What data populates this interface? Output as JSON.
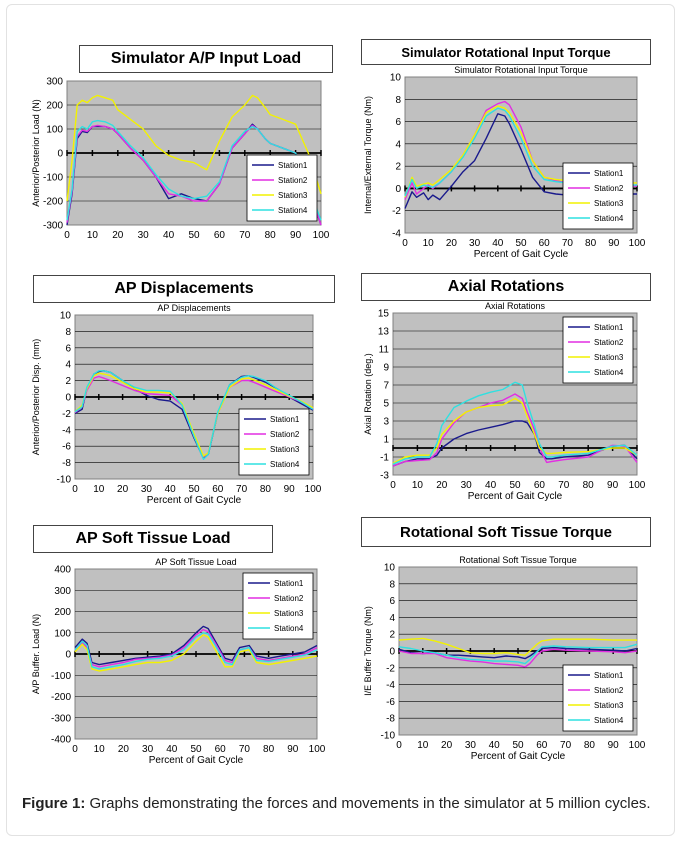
{
  "caption": {
    "label": "Figure 1:",
    "text": "Graphs demonstrating the forces and movements in the simulator at 5 million cycles."
  },
  "colors": {
    "plot_bg": "#c0c0c0",
    "Station1": "#1a1a8c",
    "Station2": "#e22ee2",
    "Station3": "#f2f200",
    "Station4": "#2fe0e0"
  },
  "chart_data": [
    {
      "id": "ap-input-load",
      "type": "line",
      "title": "Simulator A/P Input Load",
      "subtitle": "",
      "xlabel": "",
      "ylabel": "Anterior/Posterior Load (N)",
      "xlim": [
        0,
        100
      ],
      "ylim": [
        -300,
        300
      ],
      "xticks": [
        0,
        10,
        20,
        30,
        40,
        50,
        60,
        70,
        80,
        90,
        100
      ],
      "yticks": [
        -300,
        -200,
        -100,
        0,
        100,
        200,
        300
      ],
      "grid": true,
      "legend": "bottom-right",
      "x": [
        0,
        2,
        4,
        6,
        8,
        10,
        12,
        15,
        18,
        20,
        25,
        30,
        35,
        40,
        45,
        50,
        55,
        60,
        65,
        70,
        73,
        75,
        78,
        80,
        85,
        90,
        95,
        100
      ],
      "series": [
        {
          "name": "Station1",
          "values": [
            -300,
            -170,
            60,
            90,
            85,
            110,
            110,
            110,
            100,
            80,
            20,
            -30,
            -100,
            -190,
            -170,
            -190,
            -200,
            -130,
            20,
            80,
            120,
            100,
            60,
            40,
            20,
            0,
            -150,
            -300
          ]
        },
        {
          "name": "Station2",
          "values": [
            -290,
            -160,
            70,
            95,
            90,
            110,
            115,
            110,
            100,
            80,
            20,
            -30,
            -100,
            -170,
            -180,
            -200,
            -200,
            -130,
            20,
            80,
            115,
            100,
            60,
            40,
            20,
            0,
            -140,
            -300
          ]
        },
        {
          "name": "Station3",
          "values": [
            -200,
            -30,
            200,
            220,
            210,
            230,
            240,
            230,
            220,
            180,
            140,
            100,
            30,
            -10,
            -30,
            -40,
            -70,
            50,
            150,
            200,
            240,
            230,
            190,
            160,
            140,
            120,
            0,
            -170
          ]
        },
        {
          "name": "Station4",
          "values": [
            -280,
            -150,
            90,
            110,
            100,
            130,
            135,
            130,
            115,
            90,
            30,
            -20,
            -90,
            -150,
            -180,
            -190,
            -180,
            -120,
            30,
            90,
            110,
            100,
            60,
            40,
            20,
            0,
            -140,
            -280
          ]
        }
      ]
    },
    {
      "id": "rotational-input-torque",
      "type": "line",
      "title": "Simulator Rotational Input Torque",
      "subtitle": "Simulator Rotational Input Torque",
      "xlabel": "Percent of Gait Cycle",
      "ylabel": "Internal/External Torque (Nm)",
      "xlim": [
        0,
        100
      ],
      "ylim": [
        -4,
        10
      ],
      "xticks": [
        0,
        10,
        20,
        30,
        40,
        50,
        60,
        70,
        80,
        90,
        100
      ],
      "yticks": [
        -4,
        -2,
        0,
        2,
        4,
        6,
        8,
        10
      ],
      "grid": true,
      "legend": "bottom-right",
      "x": [
        0,
        3,
        5,
        8,
        10,
        12,
        15,
        20,
        25,
        30,
        35,
        40,
        43,
        45,
        50,
        55,
        60,
        65,
        70,
        80,
        90,
        100
      ],
      "series": [
        {
          "name": "Station1",
          "values": [
            -1.8,
            -0.3,
            -0.8,
            -0.4,
            -1.0,
            -0.6,
            -1.0,
            0.2,
            1.5,
            2.5,
            4.5,
            6.7,
            6.5,
            5.8,
            3.5,
            1.0,
            -0.3,
            -0.5,
            -0.6,
            -0.6,
            -0.5,
            -0.5
          ]
        },
        {
          "name": "Station2",
          "values": [
            -1.0,
            0.5,
            -0.5,
            0.0,
            0.3,
            0.0,
            0.5,
            1.5,
            3.0,
            4.8,
            7.0,
            7.6,
            7.8,
            7.5,
            5.5,
            2.5,
            1.0,
            0.7,
            0.5,
            0.4,
            0.3,
            0.2
          ]
        },
        {
          "name": "Station3",
          "values": [
            -0.8,
            1.0,
            0.2,
            0.4,
            0.5,
            0.3,
            0.8,
            1.7,
            3.0,
            4.8,
            6.8,
            7.4,
            7.2,
            6.8,
            5.0,
            2.5,
            1.0,
            0.8,
            0.7,
            0.6,
            0.5,
            0.5
          ]
        },
        {
          "name": "Station4",
          "values": [
            -0.7,
            0.8,
            0.0,
            0.3,
            0.2,
            0.1,
            0.5,
            1.5,
            2.8,
            4.5,
            6.5,
            7.2,
            7.0,
            6.5,
            4.5,
            2.0,
            0.8,
            0.6,
            0.5,
            0.4,
            0.3,
            0.3
          ]
        }
      ]
    },
    {
      "id": "ap-displacements",
      "type": "line",
      "title": "AP Displacements",
      "subtitle": "AP Displacements",
      "xlabel": "Percent of Gait Cycle",
      "ylabel": "Anterior/Posterior Disp. (mm)",
      "xlim": [
        0,
        100
      ],
      "ylim": [
        -10,
        10
      ],
      "xticks": [
        0,
        10,
        20,
        30,
        40,
        50,
        60,
        70,
        80,
        90,
        100
      ],
      "yticks": [
        -10,
        -8,
        -6,
        -4,
        -2,
        0,
        2,
        4,
        6,
        8,
        10
      ],
      "grid": true,
      "legend": "bottom-right",
      "x": [
        0,
        3,
        5,
        8,
        10,
        12,
        15,
        20,
        25,
        30,
        35,
        40,
        45,
        50,
        54,
        56,
        60,
        65,
        70,
        73,
        75,
        80,
        85,
        90,
        95,
        100
      ],
      "series": [
        {
          "name": "Station1",
          "values": [
            -2.0,
            -1.5,
            1.0,
            2.8,
            3.1,
            3.2,
            3.0,
            2.0,
            1.0,
            0.2,
            -0.3,
            -0.5,
            -1.5,
            -5.0,
            -7.5,
            -7.0,
            -2.0,
            1.5,
            2.5,
            2.6,
            2.4,
            1.8,
            1.0,
            0.0,
            -0.8,
            -1.6
          ]
        },
        {
          "name": "Station2",
          "values": [
            -1.9,
            -1.2,
            0.8,
            2.3,
            2.5,
            2.3,
            2.0,
            1.4,
            0.8,
            0.4,
            0.3,
            0.2,
            -1.0,
            -4.8,
            -7.3,
            -6.8,
            -2.0,
            1.2,
            2.0,
            2.0,
            1.8,
            1.2,
            0.6,
            0.0,
            -0.6,
            -1.4
          ]
        },
        {
          "name": "Station3",
          "values": [
            -1.8,
            -1.0,
            1.0,
            2.6,
            2.9,
            2.8,
            2.6,
            1.8,
            1.0,
            0.6,
            0.6,
            0.5,
            -0.8,
            -4.5,
            -7.2,
            -6.8,
            -2.0,
            1.2,
            2.2,
            2.3,
            2.1,
            1.5,
            0.8,
            0.1,
            -0.5,
            -1.3
          ]
        },
        {
          "name": "Station4",
          "values": [
            -1.8,
            -1.2,
            1.2,
            2.8,
            3.2,
            3.2,
            3.0,
            2.0,
            1.2,
            0.8,
            0.8,
            0.7,
            -1.0,
            -4.8,
            -7.6,
            -7.0,
            -1.8,
            1.5,
            2.4,
            2.6,
            2.5,
            2.0,
            1.0,
            0.2,
            -0.6,
            -1.5
          ]
        }
      ]
    },
    {
      "id": "axial-rotations",
      "type": "line",
      "title": "Axial Rotations",
      "subtitle": "Axial Rotations",
      "xlabel": "Percent of Gait Cycle",
      "ylabel": "Axial Rotation (deg.)",
      "xlim": [
        0,
        100
      ],
      "ylim": [
        -3,
        15
      ],
      "xticks": [
        0,
        10,
        20,
        30,
        40,
        50,
        60,
        70,
        80,
        90,
        100
      ],
      "yticks": [
        -3,
        -1,
        1,
        3,
        5,
        7,
        9,
        11,
        13,
        15
      ],
      "grid": true,
      "legend": "top-right",
      "x": [
        0,
        5,
        10,
        15,
        18,
        20,
        25,
        30,
        35,
        40,
        45,
        50,
        53,
        55,
        58,
        60,
        63,
        65,
        70,
        80,
        85,
        90,
        95,
        100
      ],
      "series": [
        {
          "name": "Station1",
          "values": [
            -2.0,
            -1.5,
            -1.2,
            -1.2,
            -0.8,
            0.0,
            1.0,
            1.6,
            2.0,
            2.3,
            2.6,
            3.0,
            3.0,
            2.8,
            1.5,
            -0.5,
            -1.2,
            -1.2,
            -1.0,
            -0.8,
            -0.3,
            0.2,
            0.3,
            -1.2
          ]
        },
        {
          "name": "Station2",
          "values": [
            -2.0,
            -1.5,
            -1.4,
            -1.3,
            -0.5,
            1.0,
            2.8,
            4.0,
            4.5,
            5.0,
            5.3,
            6.0,
            5.5,
            4.0,
            2.0,
            0.0,
            -1.6,
            -1.5,
            -1.3,
            -1.0,
            -0.3,
            0.3,
            0.2,
            -1.6
          ]
        },
        {
          "name": "Station3",
          "values": [
            -1.7,
            -1.0,
            -0.8,
            -0.8,
            0.0,
            1.5,
            3.0,
            4.0,
            4.5,
            4.7,
            4.8,
            5.5,
            5.0,
            3.5,
            1.5,
            0.0,
            -0.6,
            -0.6,
            -0.5,
            -0.4,
            -0.2,
            0.0,
            0.0,
            -0.8
          ]
        },
        {
          "name": "Station4",
          "values": [
            -1.8,
            -1.2,
            -1.0,
            -1.0,
            0.5,
            2.5,
            4.5,
            5.2,
            5.8,
            6.2,
            6.5,
            7.3,
            7.0,
            5.0,
            2.5,
            0.5,
            -1.0,
            -1.0,
            -0.8,
            -0.6,
            -0.2,
            0.2,
            0.3,
            -0.8
          ]
        }
      ]
    },
    {
      "id": "ap-soft-tissue-load",
      "type": "line",
      "title": "AP Soft Tissue Load",
      "subtitle": "AP Soft Tissue Load",
      "xlabel": "Percent of Gait Cycle",
      "ylabel": "A/P Buffer.  Load (N)",
      "xlim": [
        0,
        100
      ],
      "ylim": [
        -400,
        400
      ],
      "xticks": [
        0,
        10,
        20,
        30,
        40,
        50,
        60,
        70,
        80,
        90,
        100
      ],
      "yticks": [
        -400,
        -300,
        -200,
        -100,
        0,
        100,
        200,
        300,
        400
      ],
      "grid": true,
      "legend": "top-right",
      "x": [
        0,
        3,
        5,
        7,
        10,
        15,
        20,
        25,
        30,
        35,
        40,
        45,
        50,
        53,
        55,
        58,
        62,
        65,
        68,
        72,
        75,
        80,
        85,
        90,
        95,
        100
      ],
      "series": [
        {
          "name": "Station1",
          "values": [
            30,
            70,
            50,
            -40,
            -50,
            -40,
            -30,
            -20,
            -15,
            -10,
            0,
            40,
            100,
            130,
            120,
            60,
            -20,
            -30,
            30,
            40,
            -10,
            -20,
            -10,
            0,
            10,
            40
          ]
        },
        {
          "name": "Station2",
          "values": [
            20,
            55,
            30,
            -50,
            -60,
            -50,
            -40,
            -25,
            -20,
            -15,
            -5,
            30,
            90,
            115,
            105,
            50,
            -30,
            -40,
            20,
            30,
            -20,
            -30,
            -20,
            -10,
            0,
            30
          ]
        },
        {
          "name": "Station3",
          "values": [
            10,
            45,
            20,
            -70,
            -80,
            -70,
            -60,
            -50,
            -40,
            -40,
            -30,
            0,
            60,
            90,
            80,
            20,
            -60,
            -60,
            10,
            20,
            -40,
            -50,
            -40,
            -30,
            -20,
            -10
          ]
        },
        {
          "name": "Station4",
          "values": [
            20,
            60,
            40,
            -60,
            -70,
            -60,
            -50,
            -35,
            -25,
            -20,
            -10,
            20,
            80,
            100,
            95,
            40,
            -40,
            -50,
            20,
            30,
            -30,
            -35,
            -25,
            -15,
            -5,
            20
          ]
        }
      ]
    },
    {
      "id": "rotational-soft-tissue-torque",
      "type": "line",
      "title": "Rotational Soft Tissue Torque",
      "subtitle": "Rotational Soft Tissue Torque",
      "xlabel": "Percent of Gait Cycle",
      "ylabel": "I/E Buffer Torque (Nm)",
      "xlim": [
        0,
        100
      ],
      "ylim": [
        -10,
        10
      ],
      "xticks": [
        0,
        10,
        20,
        30,
        40,
        50,
        60,
        70,
        80,
        90,
        100
      ],
      "yticks": [
        -10,
        -8,
        -6,
        -4,
        -2,
        0,
        2,
        4,
        6,
        8,
        10
      ],
      "grid": true,
      "legend": "bottom-right",
      "x": [
        0,
        5,
        10,
        15,
        20,
        25,
        30,
        35,
        40,
        45,
        50,
        53,
        55,
        58,
        60,
        65,
        70,
        80,
        90,
        95,
        100
      ],
      "series": [
        {
          "name": "Station1",
          "values": [
            0.2,
            -0.2,
            -0.3,
            -0.2,
            -0.5,
            -0.5,
            -0.6,
            -0.7,
            -0.8,
            -0.6,
            -0.7,
            -0.9,
            -0.6,
            0.0,
            0.3,
            0.4,
            0.3,
            0.2,
            0.1,
            0.0,
            0.3
          ]
        },
        {
          "name": "Station2",
          "values": [
            0.0,
            -0.3,
            -0.3,
            -0.3,
            -0.8,
            -1.0,
            -1.2,
            -1.3,
            -1.5,
            -1.6,
            -1.7,
            -1.9,
            -1.5,
            -0.5,
            0.0,
            0.2,
            0.1,
            0.0,
            -0.1,
            -0.2,
            0.0
          ]
        },
        {
          "name": "Station3",
          "values": [
            1.3,
            1.4,
            1.5,
            1.2,
            0.8,
            0.3,
            -0.2,
            -0.3,
            -0.3,
            -0.2,
            -0.4,
            -0.5,
            0.0,
            0.8,
            1.2,
            1.4,
            1.4,
            1.4,
            1.3,
            1.3,
            1.3
          ]
        },
        {
          "name": "Station4",
          "values": [
            0.5,
            0.3,
            0.0,
            -0.2,
            -0.5,
            -0.8,
            -1.0,
            -1.1,
            -1.2,
            -1.2,
            -1.3,
            -1.5,
            -1.0,
            -0.1,
            0.5,
            0.6,
            0.5,
            0.4,
            0.4,
            0.4,
            0.8
          ]
        }
      ]
    }
  ]
}
